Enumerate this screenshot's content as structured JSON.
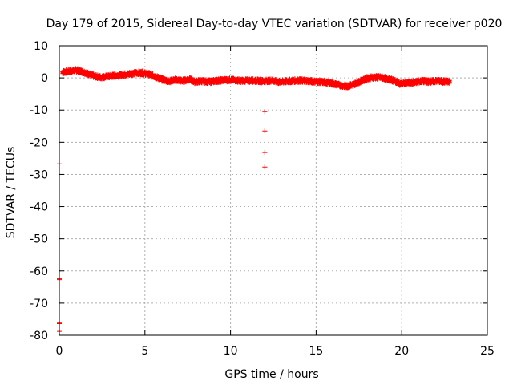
{
  "chart_data": {
    "type": "scatter",
    "title": "Day 179 of 2015, Sidereal Day-to-day VTEC variation (SDTVAR) for receiver p020",
    "xlabel": "GPS time / hours",
    "ylabel": "SDTVAR / TECUs",
    "xlim": [
      0,
      25
    ],
    "ylim": [
      -80,
      10
    ],
    "xticks": [
      0,
      5,
      10,
      15,
      20,
      25
    ],
    "yticks": [
      10,
      0,
      -10,
      -20,
      -30,
      -40,
      -50,
      -60,
      -70,
      -80
    ],
    "grid": true,
    "marker": "+",
    "color": "#ff0000",
    "series": [
      {
        "name": "SDTVAR",
        "main_trace": {
          "x": [
            0.2,
            0.5,
            0.8,
            1.0,
            1.3,
            1.6,
            2.0,
            2.4,
            2.8,
            3.2,
            3.6,
            4.0,
            4.4,
            4.8,
            5.2,
            5.6,
            6.0,
            6.4,
            6.8,
            7.2,
            7.6,
            7.9,
            8.3,
            8.8,
            9.2,
            9.6,
            10.0,
            10.4,
            10.8,
            11.2,
            11.6,
            11.9,
            12.4,
            12.8,
            13.2,
            13.6,
            14.0,
            14.4,
            14.8,
            15.2,
            15.6,
            16.0,
            16.4,
            16.8,
            17.2,
            17.6,
            18.0,
            18.4,
            18.8,
            19.2,
            19.6,
            19.9,
            20.4,
            20.8,
            21.2,
            21.6,
            22.0,
            22.4,
            22.8
          ],
          "y": [
            1.8,
            2.0,
            2.2,
            2.4,
            2.0,
            1.5,
            0.6,
            0.2,
            0.4,
            0.7,
            0.9,
            1.2,
            1.5,
            1.6,
            1.2,
            0.4,
            -0.5,
            -1.0,
            -0.6,
            -0.9,
            -0.4,
            -1.2,
            -1.0,
            -1.2,
            -0.9,
            -0.7,
            -0.6,
            -0.8,
            -0.9,
            -0.8,
            -0.9,
            -1.0,
            -0.8,
            -1.3,
            -1.1,
            -0.9,
            -0.8,
            -0.9,
            -1.1,
            -1.2,
            -1.4,
            -1.8,
            -2.3,
            -2.6,
            -2.0,
            -1.0,
            -0.1,
            0.2,
            0.1,
            -0.3,
            -1.0,
            -1.8,
            -1.6,
            -1.3,
            -1.0,
            -1.2,
            -1.0,
            -1.1,
            -1.2
          ],
          "spread": 1.2
        },
        "outliers": {
          "x": [
            12.0,
            12.0,
            12.0,
            12.0,
            0.0,
            0.0,
            0.0,
            0.0,
            0.0,
            0.0
          ],
          "y": [
            -10.5,
            -16.5,
            -23.2,
            -27.7,
            -26.7,
            -62.4,
            -62.7,
            -76.2,
            -76.4,
            -78.8
          ]
        }
      }
    ]
  }
}
